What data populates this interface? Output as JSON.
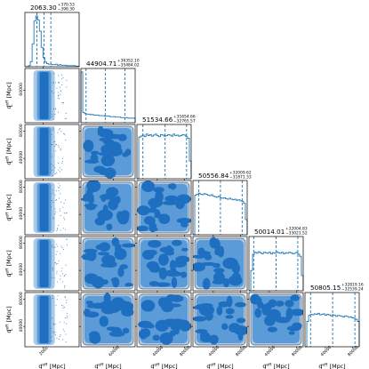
{
  "chart_data": {
    "type": "corner",
    "colors": {
      "line": "#1f77b4",
      "fill_dark": "#1f6fc0",
      "fill_mid": "#5a9bd8",
      "fill_light": "#a9c9ea",
      "axis": "#000000"
    },
    "parameters": [
      {
        "id": "d1",
        "label_main": "d",
        "label_sup": "eff",
        "label_sub": "L",
        "unit": "[Mpc]",
        "median": "2063.30",
        "plus": "+370.53",
        "minus": "−398.30",
        "range": [
          1000,
          4000
        ],
        "ticks": [
          2000
        ],
        "tick_labels": [
          "2000"
        ],
        "quantiles": [
          1665,
          2063.3,
          2434
        ],
        "hist": [
          0.0,
          0.0,
          0.02,
          0.1,
          0.45,
          0.9,
          1.0,
          0.92,
          0.7,
          0.38,
          0.18,
          0.09,
          0.06,
          0.05,
          0.05,
          0.04,
          0.04,
          0.05,
          0.03,
          0.04,
          0.03,
          0.03,
          0.03,
          0.02,
          0.02,
          0.02,
          0.02,
          0.02,
          0.01,
          0.01
        ]
      },
      {
        "id": "d2",
        "label_main": "d",
        "label_sup": "eff",
        "label_sub": "L",
        "unit": "[Mpc]",
        "median": "44904.71",
        "plus": "+36352.10",
        "minus": "−35484.02",
        "range": [
          0,
          100000
        ],
        "ticks": [
          60000
        ],
        "tick_labels": [
          "60000"
        ],
        "quantiles": [
          9420,
          44904.71,
          81257
        ],
        "hist": [
          1.0,
          0.2,
          0.18,
          0.17,
          0.17,
          0.16,
          0.16,
          0.15,
          0.15,
          0.15,
          0.14,
          0.14,
          0.14,
          0.13,
          0.13,
          0.13,
          0.12,
          0.12,
          0.12,
          0.11,
          0.11,
          0.11,
          0.1,
          0.1,
          0.1,
          0.1,
          0.09,
          0.09,
          0.09,
          0.09
        ]
      },
      {
        "id": "d3",
        "label_main": "d",
        "label_sup": "eff",
        "label_sub": "L",
        "unit": "[Mpc]",
        "median": "51534.66",
        "plus": "+31654.66",
        "minus": "−32765.57",
        "range": [
          10000,
          90000
        ],
        "ticks": [
          40000,
          80000
        ],
        "tick_labels": [
          "40000",
          "80000"
        ],
        "quantiles": [
          18770,
          51534.66,
          83190
        ],
        "hist": [
          0.0,
          0.82,
          0.84,
          0.86,
          0.83,
          0.88,
          0.85,
          0.87,
          0.84,
          0.86,
          0.88,
          0.85,
          0.83,
          0.87,
          0.86,
          0.84,
          0.85,
          0.87,
          0.86,
          0.84,
          0.88,
          0.85,
          0.86,
          0.84,
          0.85,
          0.87,
          0.86,
          0.83,
          0.8,
          0.35
        ]
      },
      {
        "id": "d4",
        "label_main": "d",
        "label_sup": "eff",
        "label_sub": "L",
        "unit": "[Mpc]",
        "median": "50556.84",
        "plus": "+32009.62",
        "minus": "−31871.33",
        "range": [
          10000,
          90000
        ],
        "ticks": [
          40000,
          80000
        ],
        "tick_labels": [
          "40000",
          "80000"
        ],
        "quantiles": [
          18686,
          50556.84,
          82566
        ],
        "hist": [
          0.0,
          0.78,
          0.8,
          0.82,
          0.8,
          0.79,
          0.81,
          0.8,
          0.78,
          0.77,
          0.79,
          0.76,
          0.75,
          0.74,
          0.76,
          0.73,
          0.72,
          0.73,
          0.71,
          0.7,
          0.72,
          0.7,
          0.69,
          0.7,
          0.68,
          0.69,
          0.67,
          0.66,
          0.62,
          0.3
        ]
      },
      {
        "id": "d5",
        "label_main": "d",
        "label_sup": "eff",
        "label_sub": "L",
        "unit": "[Mpc]",
        "median": "50014.01",
        "plus": "+32004.83",
        "minus": "−33021.52",
        "range": [
          10000,
          90000
        ],
        "ticks": [
          40000,
          80000
        ],
        "tick_labels": [
          "40000",
          "80000"
        ],
        "quantiles": [
          16992,
          50014.01,
          82019
        ],
        "hist": [
          0.0,
          0.4,
          0.72,
          0.76,
          0.74,
          0.77,
          0.75,
          0.73,
          0.76,
          0.75,
          0.74,
          0.76,
          0.73,
          0.75,
          0.74,
          0.77,
          0.75,
          0.74,
          0.76,
          0.73,
          0.75,
          0.74,
          0.76,
          0.75,
          0.73,
          0.74,
          0.76,
          0.72,
          0.68,
          0.3
        ]
      },
      {
        "id": "d6",
        "label_main": "d",
        "label_sup": "eff",
        "label_sub": "L",
        "unit": "[Mpc]",
        "median": "50805.15",
        "plus": "+32819.16",
        "minus": "−32539.24",
        "range": [
          10000,
          90000
        ],
        "ticks": [
          40000,
          80000
        ],
        "tick_labels": [
          "40000",
          "80000"
        ],
        "quantiles": [
          18266,
          50805.15,
          83624
        ],
        "hist": [
          0.0,
          0.5,
          0.62,
          0.64,
          0.63,
          0.65,
          0.64,
          0.66,
          0.63,
          0.64,
          0.65,
          0.62,
          0.64,
          0.63,
          0.61,
          0.63,
          0.62,
          0.6,
          0.62,
          0.61,
          0.6,
          0.59,
          0.61,
          0.6,
          0.58,
          0.59,
          0.57,
          0.56,
          0.54,
          0.5
        ]
      }
    ]
  }
}
